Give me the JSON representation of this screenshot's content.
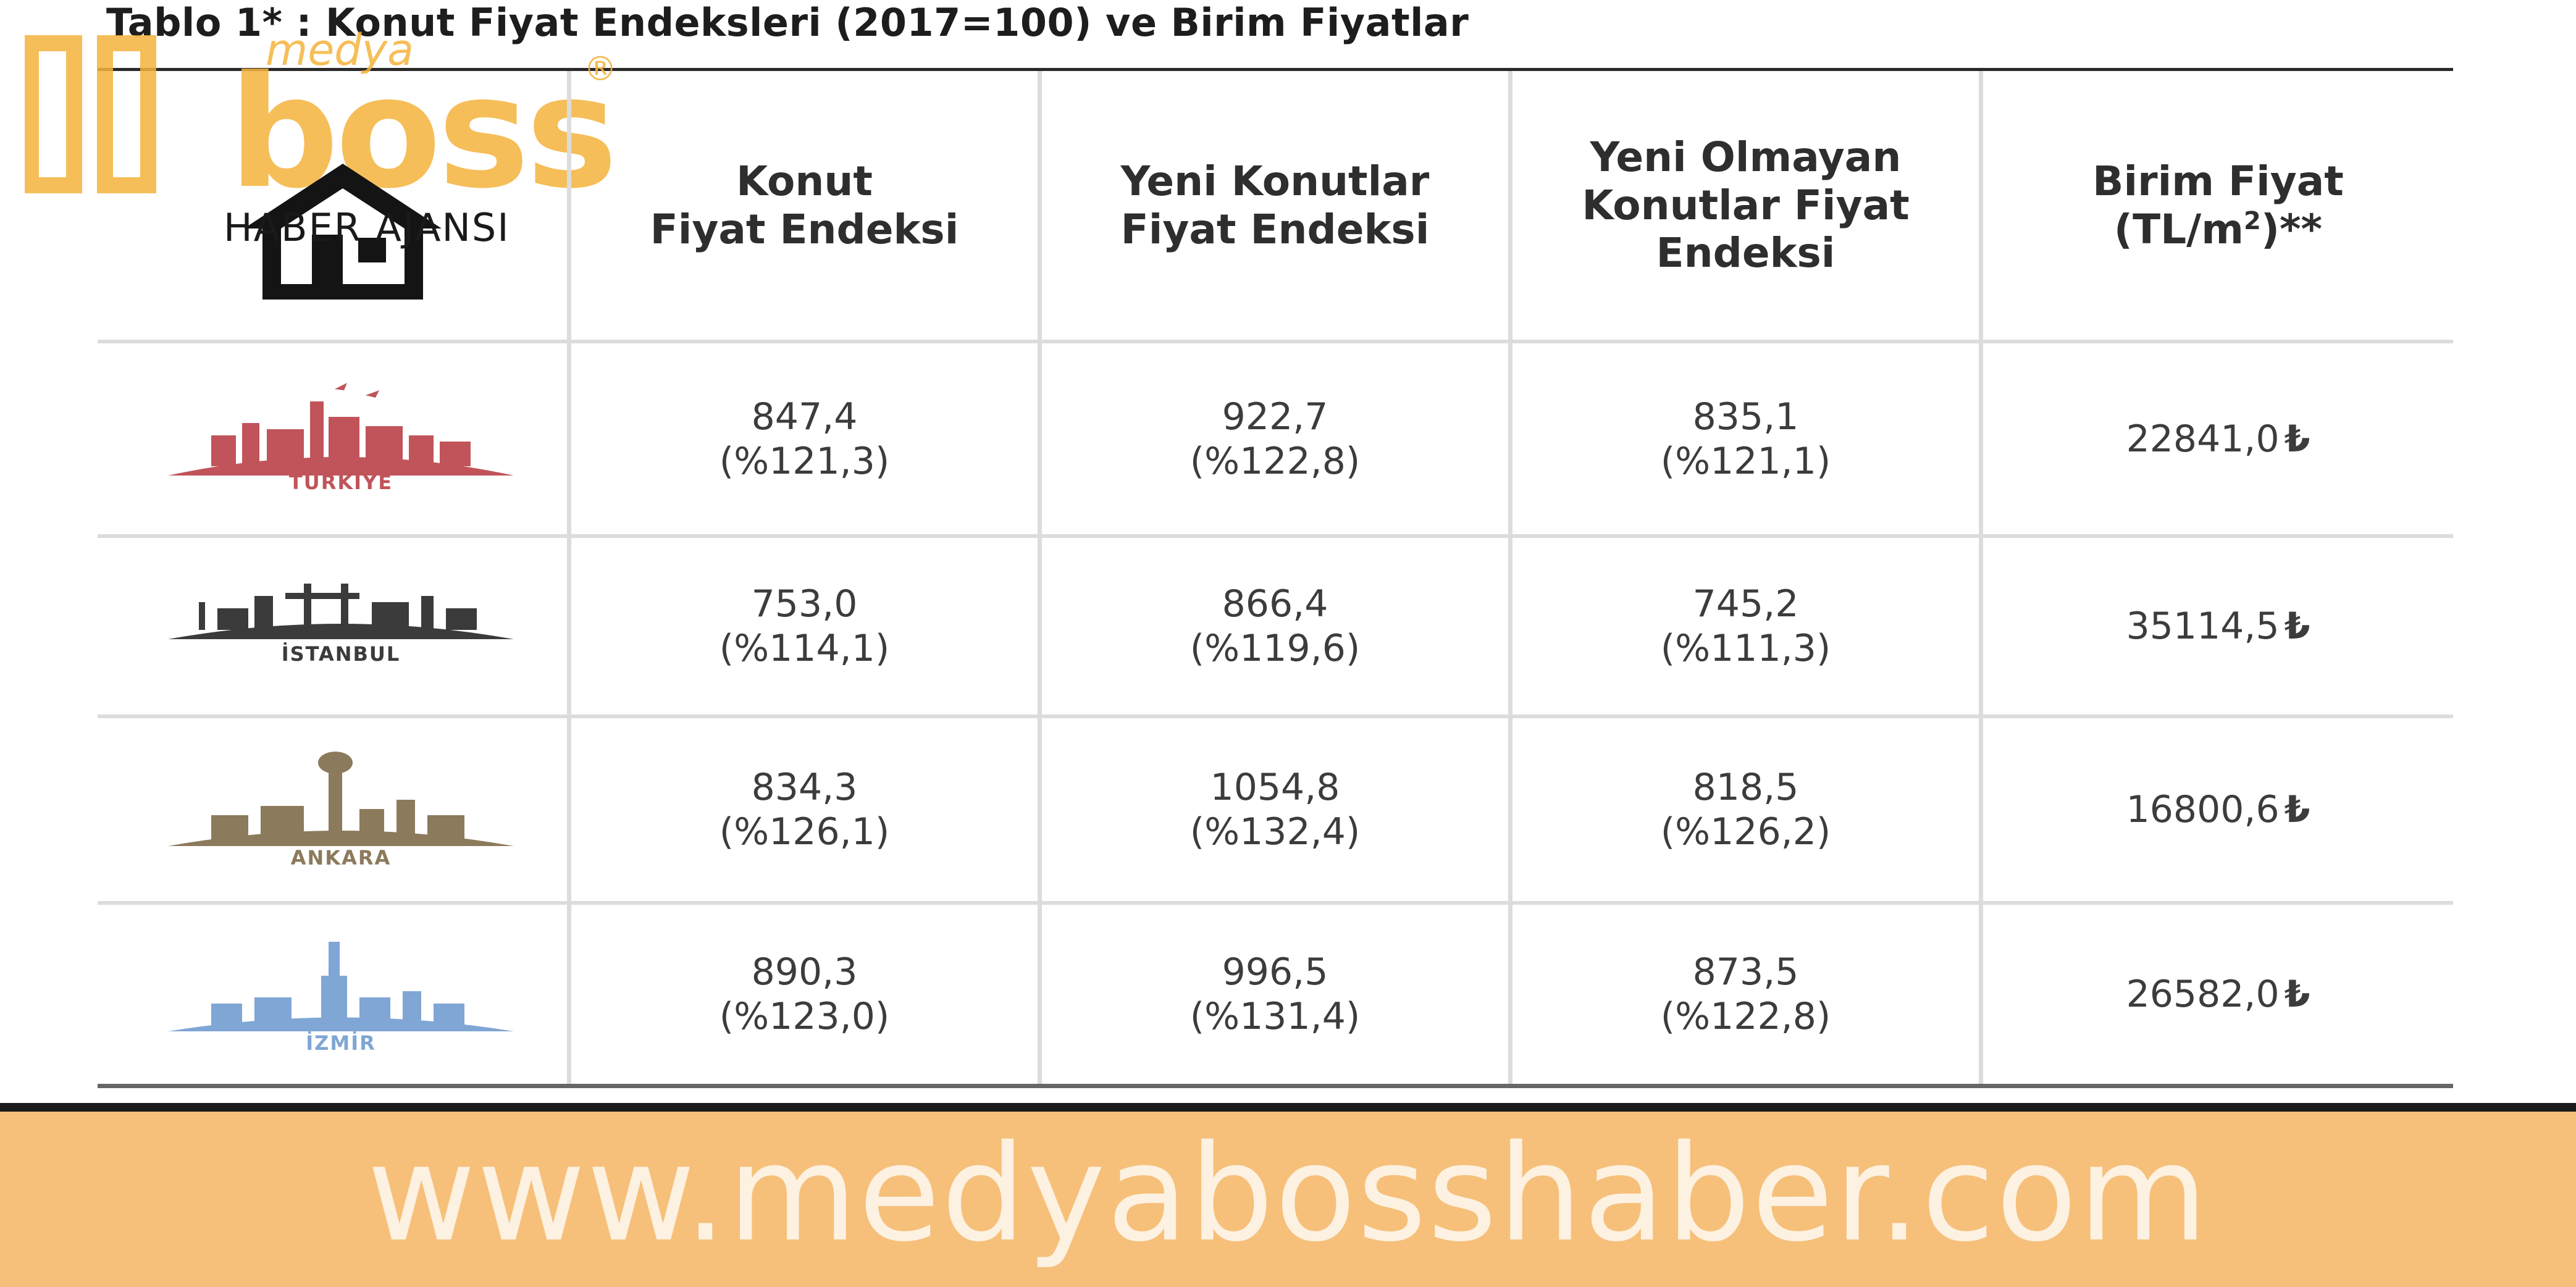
{
  "title": "Tablo 1* : Konut Fiyat Endeksleri (2017=100) ve Birim Fiyatlar",
  "brand": {
    "medya": "medya",
    "boss": "boss",
    "registered": "®",
    "subtitle": "HABER AJANSI",
    "color": "#f5b33b"
  },
  "columns": [
    {
      "line1": "Konut",
      "line2": "Fiyat Endeksi",
      "line3": ""
    },
    {
      "line1": "Yeni Konutlar",
      "line2": "Fiyat Endeksi",
      "line3": ""
    },
    {
      "line1": "Yeni Olmayan",
      "line2": "Konutlar Fiyat",
      "line3": "Endeksi"
    },
    {
      "line1": "Birim Fiyat",
      "line2": "(TL/m",
      "sup": "2",
      "line2_end": ")**"
    }
  ],
  "rows": [
    {
      "region": "TÜRKİYE",
      "color": "#c0545a",
      "cells": [
        {
          "value": "847,4",
          "change": "(%121,3)"
        },
        {
          "value": "922,7",
          "change": "(%122,8)"
        },
        {
          "value": "835,1",
          "change": "(%121,1)"
        }
      ],
      "price": "22841,0",
      "currency": "₺"
    },
    {
      "region": "İSTANBUL",
      "color": "#3b3b3b",
      "cells": [
        {
          "value": "753,0",
          "change": "(%114,1)"
        },
        {
          "value": "866,4",
          "change": "(%119,6)"
        },
        {
          "value": "745,2",
          "change": "(%111,3)"
        }
      ],
      "price": "35114,5",
      "currency": "₺"
    },
    {
      "region": "ANKARA",
      "color": "#8c7a5c",
      "cells": [
        {
          "value": "834,3",
          "change": "(%126,1)"
        },
        {
          "value": "1054,8",
          "change": "(%132,4)"
        },
        {
          "value": "818,5",
          "change": "(%126,2)"
        }
      ],
      "price": "16800,6",
      "currency": "₺"
    },
    {
      "region": "İZMİR",
      "color": "#7fa6d4",
      "cells": [
        {
          "value": "890,3",
          "change": "(%123,0)"
        },
        {
          "value": "996,5",
          "change": "(%131,4)"
        },
        {
          "value": "873,5",
          "change": "(%122,8)"
        }
      ],
      "price": "26582,0",
      "currency": "₺"
    }
  ],
  "footer": {
    "url": "www.medyabosshaber.com",
    "background": "#f6c07a"
  }
}
